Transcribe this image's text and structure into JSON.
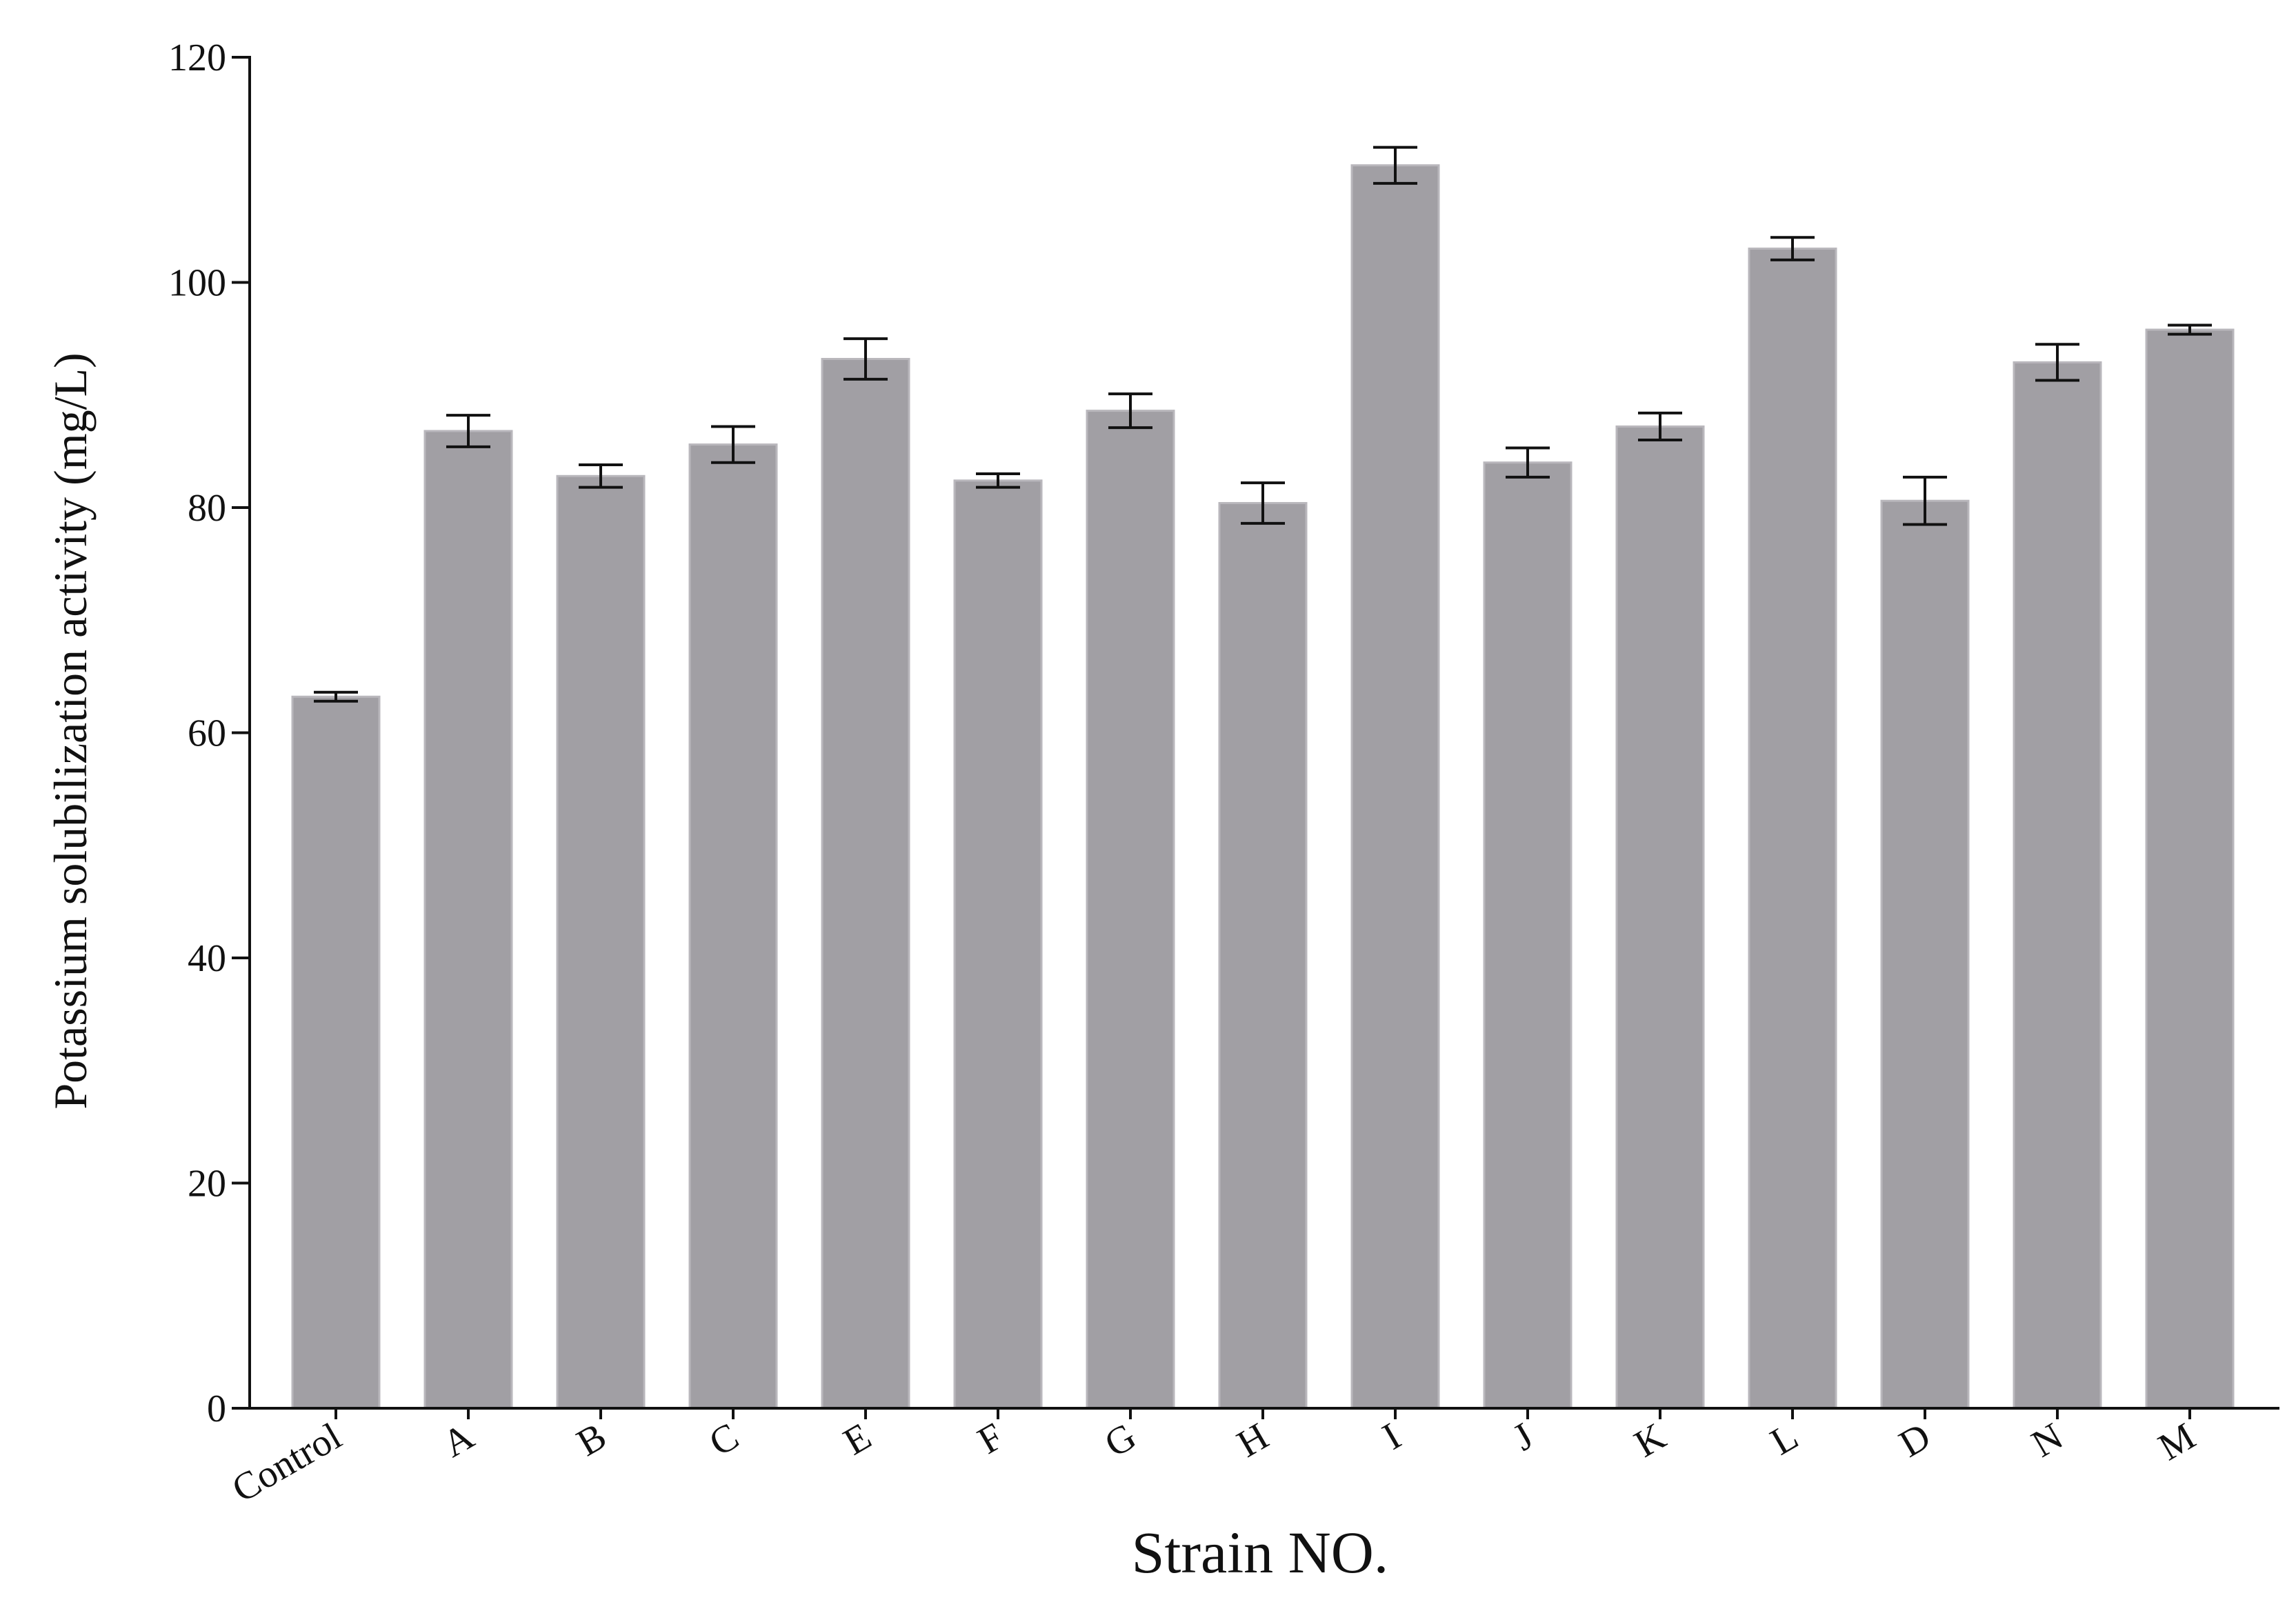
{
  "chart_data": {
    "type": "bar",
    "title": "",
    "xlabel": "Strain NO.",
    "ylabel": "Potassium solubilization activity (mg/L)",
    "ylim": [
      0,
      120
    ],
    "yticks": [
      "0",
      "20",
      "40",
      "60",
      "80",
      "100",
      "120"
    ],
    "grid": false,
    "legend": "none",
    "bar_color": "#a19fa4",
    "categories": [
      "Control",
      "A",
      "B",
      "C",
      "E",
      "F",
      "G",
      "H",
      "I",
      "J",
      "K",
      "L",
      "D",
      "N",
      "M"
    ],
    "values": [
      63.2,
      86.8,
      82.8,
      85.6,
      93.2,
      82.4,
      88.6,
      80.4,
      110.4,
      84.0,
      87.2,
      103.0,
      80.6,
      92.9,
      95.8
    ],
    "errors": [
      0.4,
      1.4,
      1.0,
      1.6,
      1.8,
      0.6,
      1.5,
      1.8,
      1.6,
      1.3,
      1.2,
      1.0,
      2.1,
      1.6,
      0.4
    ]
  }
}
